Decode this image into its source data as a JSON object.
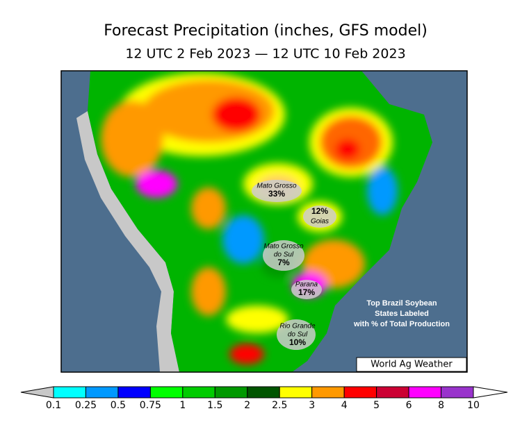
{
  "header": {
    "title": "Forecast Precipitation (inches, GFS model)",
    "subtitle": "12 UTC 2 Feb 2023 — 12 UTC 10 Feb 2023"
  },
  "map": {
    "state_labels": [
      {
        "name": [
          "Mato Grosso"
        ],
        "share": "33%"
      },
      {
        "name": [
          "Goias"
        ],
        "share": "12%"
      },
      {
        "name": [
          "Mato Grosso",
          "do Sul"
        ],
        "share": "7%"
      },
      {
        "name": [
          "Parana"
        ],
        "share": "17%"
      },
      {
        "name": [
          "Rio Grande",
          "do Sul"
        ],
        "share": "10%"
      }
    ],
    "note": [
      "Top Brazil Soybean",
      "States Labeled",
      "with % of Total Production"
    ],
    "credit": "World Ag Weather"
  },
  "colorbar": {
    "ticks": [
      0.1,
      0.25,
      0.5,
      0.75,
      1,
      1.5,
      2,
      2.5,
      3,
      4,
      5,
      6,
      8,
      10
    ],
    "colors": [
      "#00ffff",
      "#0099ff",
      "#0000ff",
      "#00ff00",
      "#00cc00",
      "#009900",
      "#005500",
      "#ffff00",
      "#ff9900",
      "#ff0000",
      "#cc0033",
      "#ff00ff",
      "#9933cc"
    ],
    "under_color": "#c8c8c8",
    "over_color": "#ffffff"
  }
}
